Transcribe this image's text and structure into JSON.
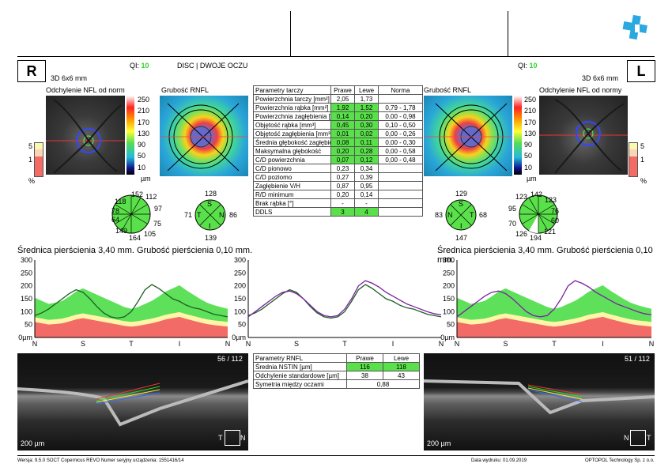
{
  "header": {
    "logo": "plus-logo",
    "qi_label": "QI:",
    "qi_right_eye": "10",
    "qi_left_eye": "10",
    "title": "DISC | DWOJE OCZU"
  },
  "right_eye": {
    "badge": "R",
    "scan": "3D  6x6 mm",
    "deviation_title": "Odchylenie NFL od normy",
    "thickness_title": "Grubość RNFL"
  },
  "left_eye": {
    "badge": "L",
    "scan": "3D  6x6 mm",
    "deviation_title": "Odchylenie NFL od normy",
    "thickness_title": "Grubość RNFL"
  },
  "colorbar": {
    "labels": [
      "250",
      "210",
      "170",
      "130",
      "90",
      "50",
      "10"
    ],
    "unit": "µm"
  },
  "percentbar": {
    "labels": [
      "5",
      "1"
    ],
    "unit": "%"
  },
  "disc_table": {
    "headers": [
      "Parametry tarczy",
      "Prawe",
      "Lewe",
      "Norma"
    ],
    "rows": [
      [
        "Powierzchnia tarczy [mm²]",
        "2,05",
        "1,73",
        ""
      ],
      [
        "Powierzchnia rąbka [mm²]",
        "1,92",
        "1,52",
        "0,79 - 1,78"
      ],
      [
        "Powierzchnia zagłębienia [mm²]",
        "0,14",
        "0,20",
        "0,00 - 0,98"
      ],
      [
        "Objętość rąbka [mm³]",
        "0,45",
        "0,30",
        "0,10 - 0,50"
      ],
      [
        "Objętość zagłębienia [mm³]",
        "0,01",
        "0,02",
        "0,00 - 0,26"
      ],
      [
        "Średnia głębokość zagłębienia",
        "0,08",
        "0,11",
        "0,00 - 0,30"
      ],
      [
        "Maksymalna głębokość",
        "0,20",
        "0,28",
        "0,00 - 0,58"
      ],
      [
        "C/D powierzchnia",
        "0,07",
        "0,12",
        "0,00 - 0,48"
      ],
      [
        "C/D pionowo",
        "0,23",
        "0,34",
        ""
      ],
      [
        "C/D poziomo",
        "0,27",
        "0,39",
        ""
      ],
      [
        "Zagłębienie V/H",
        "0,87",
        "0,95",
        ""
      ],
      [
        "R/D minimum",
        "0,20",
        "0,14",
        ""
      ],
      [
        "Brak rąbka [°]",
        "-",
        "-",
        ""
      ],
      [
        "DDLS",
        "3",
        "4",
        ""
      ]
    ]
  },
  "clock_right": {
    "values": [
      "152",
      "112",
      "97",
      "75",
      "105",
      "164",
      "149",
      "64",
      "78",
      "118"
    ]
  },
  "quad_right": {
    "S": "128",
    "N": "86",
    "I": "139",
    "T": "71",
    "labels": [
      "S",
      "N",
      "I",
      "T"
    ]
  },
  "clock_left": {
    "values": [
      "142",
      "123",
      "76",
      "60",
      "121",
      "194",
      "126",
      "70",
      "95",
      "123"
    ]
  },
  "quad_left": {
    "S": "129",
    "T": "68",
    "I": "147",
    "N": "83",
    "labels": [
      "S",
      "T",
      "I",
      "N"
    ]
  },
  "profile": {
    "caption_right": "Średnica pierścienia 3,40 mm. Grubość pierścienia 0,10 mm.",
    "caption_left": "Średnica pierścienia 3,40 mm. Grubość pierścienia 0,10 mm.",
    "y_ticks": [
      "300",
      "250",
      "200",
      "150",
      "100",
      "50",
      "0µm"
    ],
    "x_ticks_right": [
      "N",
      "S",
      "T",
      "I",
      "N"
    ],
    "x_ticks_left": [
      "N",
      "S",
      "T",
      "I",
      "N"
    ],
    "x_ticks_mid": [
      "N",
      "S",
      "T",
      "I",
      "N"
    ]
  },
  "rnfl_table": {
    "headers": [
      "Parametry RNFL",
      "Prawe",
      "Lewe"
    ],
    "rows": [
      [
        "Średnia NSTIN [µm]",
        "116",
        "118"
      ],
      [
        "Odchylenie standardowe [µm]",
        "38",
        "43"
      ]
    ],
    "symmetry_label": "Symetria między oczami",
    "symmetry_value": "0,88"
  },
  "oct_right": {
    "slice": "56 / 112",
    "scale": "200 µm",
    "orient_from": "T",
    "orient_to": "N"
  },
  "oct_left": {
    "slice": "51 / 112",
    "scale": "200 µm",
    "orient_from": "N",
    "orient_to": "T"
  },
  "footer": {
    "version": "Wersja: 9.5.0   SOCT Copernicus REVO   Numer seryjny urządzenia: 1551416/14",
    "print_date": "Data wydruku: 01.09.2019",
    "company": "OPTOPOL Technology Sp. z o.o."
  },
  "colors": {
    "green": "#2bd62b",
    "norm_green": "#5fe05a",
    "norm_yellow": "#fff5a6",
    "norm_red": "#f26b66",
    "right_line": "#1b5e20",
    "left_line": "#7b1fa2"
  }
}
